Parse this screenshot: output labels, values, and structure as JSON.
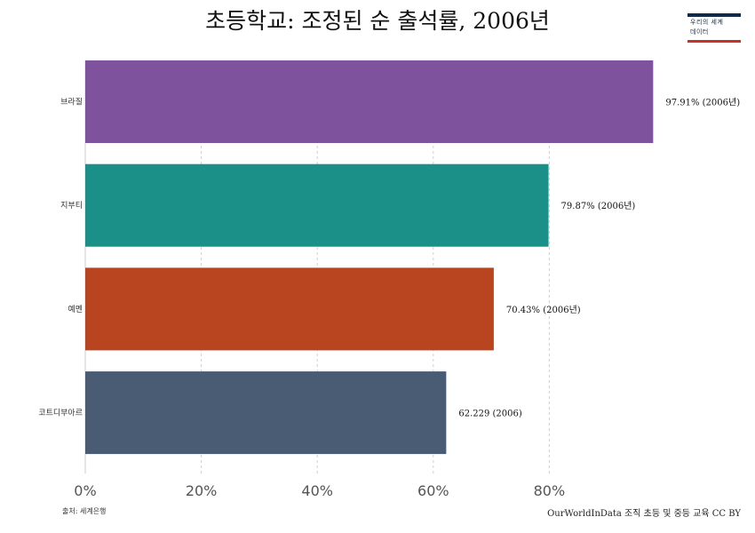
{
  "title": "초등학교: 조정된 순 출석률, 2006년",
  "logo": {
    "line1": "우리의 세계",
    "line2": "데이터"
  },
  "footer": {
    "source": "출처: 세계은행",
    "credit": "OurWorldInData 조직 초등 및 중등 교육 CC BY"
  },
  "colors": {
    "brazil": "#7e529c",
    "djibouti": "#1a9088",
    "yemen": "#b94520",
    "cote_divoire": "#4a5b74",
    "grid": "#d0d0d0",
    "tick": "#555555"
  },
  "chart_data": {
    "type": "bar",
    "orientation": "horizontal",
    "title": "초등학교: 조정된 순 출석률, 2006년",
    "categories": [
      "브라질",
      "지부티",
      "예멘",
      "코트디부아르"
    ],
    "values": [
      97.91,
      79.87,
      70.43,
      62.229
    ],
    "value_labels": [
      "97.91% (2006년)",
      "79.87% (2006년)",
      "70.43% (2006년)",
      "62.229 (2006)"
    ],
    "xticks": [
      "0%",
      "20%",
      "40%",
      "60%",
      "80%"
    ],
    "xlim": [
      0,
      100
    ],
    "grid": "vertical dashed",
    "bar_colors": [
      "#7e529c",
      "#1a9088",
      "#b94520",
      "#4a5b74"
    ]
  }
}
